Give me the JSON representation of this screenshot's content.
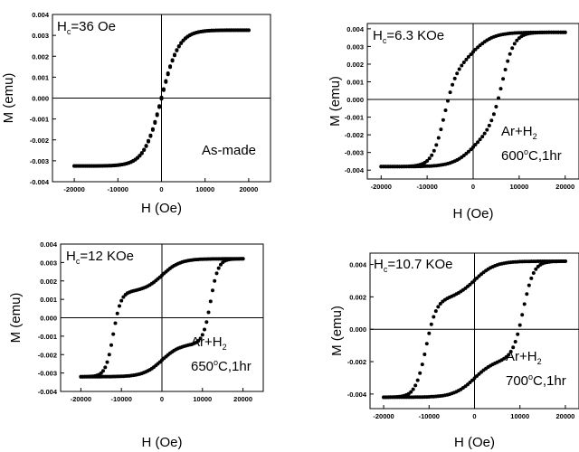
{
  "chart_data": [
    {
      "type": "scatter",
      "panel": "top-left",
      "title": "",
      "xlabel": "H (Oe)",
      "ylabel": "M (emu)",
      "xlim": [
        -25000,
        25000
      ],
      "ylim": [
        -0.004,
        0.004
      ],
      "xticks": [
        -20000,
        -10000,
        0,
        10000,
        20000
      ],
      "xtick_labels": [
        "-20000",
        "-10000",
        "0",
        "10000",
        "20000"
      ],
      "yticks": [
        -0.004,
        -0.003,
        -0.002,
        -0.001,
        0,
        0.001,
        0.002,
        0.003,
        0.004
      ],
      "ytick_labels": [
        "-0.004",
        "-0.003",
        "-0.002",
        "-0.001",
        "0.000",
        "0.001",
        "0.002",
        "0.003",
        "0.004"
      ],
      "annotations": {
        "hc": {
          "pre": "H",
          "sub": "c",
          "post": "=36 Oe"
        },
        "condition_lines": [
          "As-made"
        ]
      },
      "loop": {
        "Ms": 0.00325,
        "Mr": 0.0001,
        "Hc": 36,
        "Hs": 20000,
        "width": 4000,
        "soft": true
      },
      "series": [
        {
          "values": [
            [
              -20000,
              -0.0032
            ],
            [
              -15000,
              -0.00315
            ],
            [
              -10000,
              -0.00305
            ],
            [
              -5000,
              -0.0028
            ],
            [
              -2000,
              -0.0022
            ],
            [
              -1000,
              -0.0017
            ],
            [
              0,
              0.0
            ],
            [
              1000,
              0.0017
            ],
            [
              2000,
              0.0022
            ],
            [
              5000,
              0.0028
            ],
            [
              10000,
              0.00305
            ],
            [
              15000,
              0.00315
            ],
            [
              20000,
              0.0032
            ]
          ]
        }
      ]
    },
    {
      "type": "scatter",
      "panel": "top-right",
      "title": "",
      "xlabel": "H (Oe)",
      "ylabel": "M (emu)",
      "xlim": [
        -23000,
        23000
      ],
      "ylim": [
        -0.0045,
        0.0043
      ],
      "xticks": [
        -20000,
        -10000,
        0,
        10000,
        20000
      ],
      "xtick_labels": [
        "-20000",
        "-10000",
        "0",
        "10000",
        "20000"
      ],
      "yticks": [
        -0.004,
        -0.003,
        -0.002,
        -0.001,
        0,
        0.001,
        0.002,
        0.003,
        0.004
      ],
      "ytick_labels": [
        "-0.004",
        "-0.003",
        "-0.002",
        "-0.001",
        "0.000",
        "0.001",
        "0.002",
        "0.003",
        "0.004"
      ],
      "annotations": {
        "hc": {
          "pre": "H",
          "sub": "c",
          "post": "=6.3 KOe"
        },
        "condition_lines": [
          {
            "pre": "Ar+H",
            "sub": "2",
            "post": ""
          },
          {
            "pre": "600",
            "sup": "o",
            "post": "C,1hr"
          }
        ]
      },
      "loop": {
        "Ms": 0.0038,
        "Mr": 0.0028,
        "Hc": 6300,
        "Hs": 20000,
        "width": 2600,
        "soft": false
      },
      "series": [
        {
          "name": "",
          "values": [
            [
              20000,
              0.0038
            ],
            [
              10000,
              0.0036
            ],
            [
              3000,
              0.0031
            ],
            [
              0,
              0.0028
            ],
            [
              -5000,
              0.0015
            ],
            [
              -6300,
              0.0
            ],
            [
              -8000,
              -0.0015
            ],
            [
              -15000,
              -0.0034
            ],
            [
              -20000,
              -0.0038
            ]
          ]
        }
      ]
    },
    {
      "type": "scatter",
      "panel": "bottom-left",
      "title": "",
      "xlabel": "H (Oe)",
      "ylabel": "M (emu)",
      "xlim": [
        -25000,
        25000
      ],
      "ylim": [
        -0.004,
        0.004
      ],
      "xticks": [
        -20000,
        -10000,
        0,
        10000,
        20000
      ],
      "xtick_labels": [
        "-20000",
        "-10000",
        "0",
        "10000",
        "20000"
      ],
      "yticks": [
        -0.004,
        -0.003,
        -0.002,
        -0.001,
        0,
        0.001,
        0.002,
        0.003,
        0.004
      ],
      "ytick_labels": [
        "-0.004",
        "-0.003",
        "-0.002",
        "-0.001",
        "0.000",
        "0.001",
        "0.002",
        "0.003",
        "0.004"
      ],
      "annotations": {
        "hc": {
          "pre": "H",
          "sub": "c",
          "post": "=12 KOe"
        },
        "condition_lines": [
          {
            "pre": "Ar+H",
            "sub": "2",
            "post": ""
          },
          {
            "pre": "650",
            "sup": "o",
            "post": "C,1hr"
          }
        ]
      },
      "loop": {
        "Ms": 0.0032,
        "Mr": 0.0027,
        "Hc": 12000,
        "Hs": 20000,
        "width": 1900,
        "soft": false
      },
      "series": [
        {
          "name": "",
          "values": [
            [
              20000,
              0.0032
            ],
            [
              10000,
              0.0031
            ],
            [
              0,
              0.0027
            ],
            [
              -8000,
              0.0022
            ],
            [
              -12000,
              0.0
            ],
            [
              -14000,
              -0.002
            ],
            [
              -20000,
              -0.0032
            ]
          ]
        }
      ]
    },
    {
      "type": "scatter",
      "panel": "bottom-right",
      "title": "",
      "xlabel": "H (Oe)",
      "ylabel": "M (emu)",
      "xlim": [
        -23000,
        23000
      ],
      "ylim": [
        -0.0049,
        0.0047
      ],
      "xticks": [
        -20000,
        -10000,
        0,
        10000,
        20000
      ],
      "xtick_labels": [
        "-20000",
        "-10000",
        "0",
        "10000",
        "20000"
      ],
      "yticks": [
        -0.004,
        -0.002,
        0,
        0.002,
        0.004
      ],
      "ytick_labels": [
        "-0.004",
        "-0.002",
        "0.000",
        "0.002",
        "0.004"
      ],
      "annotations": {
        "hc": {
          "pre": "H",
          "sub": "c",
          "post": "=10.7 KOe"
        },
        "condition_lines": [
          {
            "pre": "Ar+H",
            "sub": "2",
            "post": ""
          },
          {
            "pre": "700",
            "sup": "o",
            "post": "C,1hr"
          }
        ]
      },
      "loop": {
        "Ms": 0.0042,
        "Mr": 0.0031,
        "Hc": 10700,
        "Hs": 20000,
        "width": 2300,
        "soft": false
      },
      "series": [
        {
          "name": "",
          "values": [
            [
              20000,
              0.0042
            ],
            [
              10000,
              0.0039
            ],
            [
              0,
              0.0031
            ],
            [
              -8000,
              0.002
            ],
            [
              -10700,
              0.0
            ],
            [
              -13000,
              -0.002
            ],
            [
              -20000,
              -0.0042
            ]
          ]
        }
      ]
    }
  ]
}
